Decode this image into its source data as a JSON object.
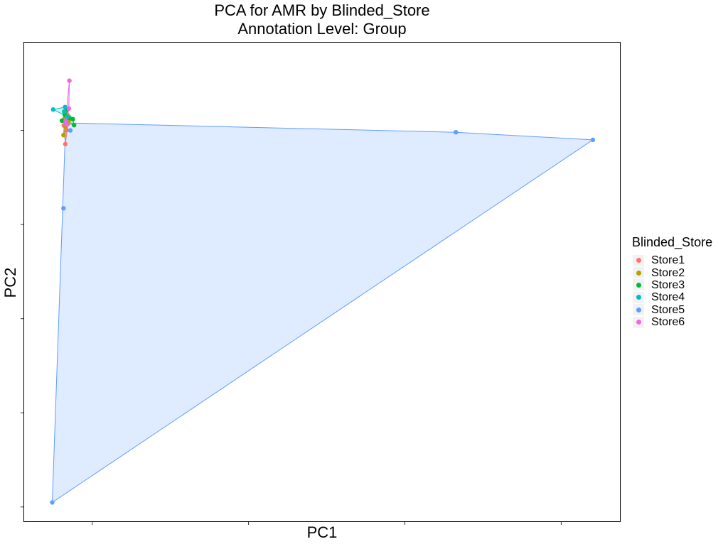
{
  "chart_data": {
    "type": "scatter",
    "title": "PCA for AMR by Blinded_Store",
    "subtitle": "Annotation Level: Group",
    "xlabel": "PC1",
    "ylabel": "PC2",
    "x_ticks": [
      0.0,
      0.5,
      1.0,
      1.5
    ],
    "y_ticks": [
      -2.0,
      -1.5,
      -1.0,
      -0.5,
      0.0
    ],
    "xlim": [
      -0.22,
      1.69
    ],
    "ylim": [
      -2.08,
      0.47
    ],
    "tick_labels_shown": false,
    "grid": false,
    "hulls": true,
    "legend": {
      "title": "Blinded_Store",
      "position": "right",
      "items": [
        {
          "label": "Store1",
          "color": "#F8766D"
        },
        {
          "label": "Store2",
          "color": "#B79F00"
        },
        {
          "label": "Store3",
          "color": "#00BA38"
        },
        {
          "label": "Store4",
          "color": "#00BFC4"
        },
        {
          "label": "Store5",
          "color": "#619CFF"
        },
        {
          "label": "Store6",
          "color": "#F564E3"
        }
      ]
    },
    "series": [
      {
        "name": "Store1",
        "color": "#F8766D",
        "points": [
          [
            -0.088,
            0.046
          ],
          [
            -0.081,
            0.086
          ],
          [
            -0.086,
            -0.073
          ],
          [
            -0.078,
            0.034
          ],
          [
            -0.082,
            0.001
          ],
          [
            -0.091,
            0.026
          ]
        ]
      },
      {
        "name": "Store2",
        "color": "#B79F00",
        "points": [
          [
            -0.092,
            -0.025
          ],
          [
            -0.074,
            0.054
          ],
          [
            -0.085,
            0.02
          ],
          [
            -0.088,
            0.066
          ],
          [
            -0.079,
            0.04
          ]
        ]
      },
      {
        "name": "Store3",
        "color": "#00BA38",
        "points": [
          [
            -0.084,
            0.106
          ],
          [
            -0.062,
            0.06
          ],
          [
            -0.058,
            0.028
          ],
          [
            -0.097,
            0.052
          ],
          [
            -0.075,
            0.066
          ],
          [
            -0.088,
            0.083
          ]
        ]
      },
      {
        "name": "Store4",
        "color": "#00BFC4",
        "points": [
          [
            -0.087,
            0.124
          ],
          [
            -0.125,
            0.111
          ],
          [
            -0.08,
            0.073
          ],
          [
            -0.09,
            0.1
          ]
        ]
      },
      {
        "name": "Store5",
        "color": "#619CFF",
        "points": [
          [
            -0.092,
            -0.414
          ],
          [
            -0.128,
            -1.976
          ],
          [
            1.163,
            -0.01
          ],
          [
            1.601,
            -0.05
          ],
          [
            -0.07,
            0.0
          ],
          [
            -0.085,
            0.04
          ]
        ]
      },
      {
        "name": "Store6",
        "color": "#F564E3",
        "points": [
          [
            -0.073,
            0.264
          ],
          [
            -0.075,
            0.116
          ],
          [
            -0.085,
            0.052
          ],
          [
            -0.082,
            0.03
          ]
        ]
      }
    ]
  }
}
